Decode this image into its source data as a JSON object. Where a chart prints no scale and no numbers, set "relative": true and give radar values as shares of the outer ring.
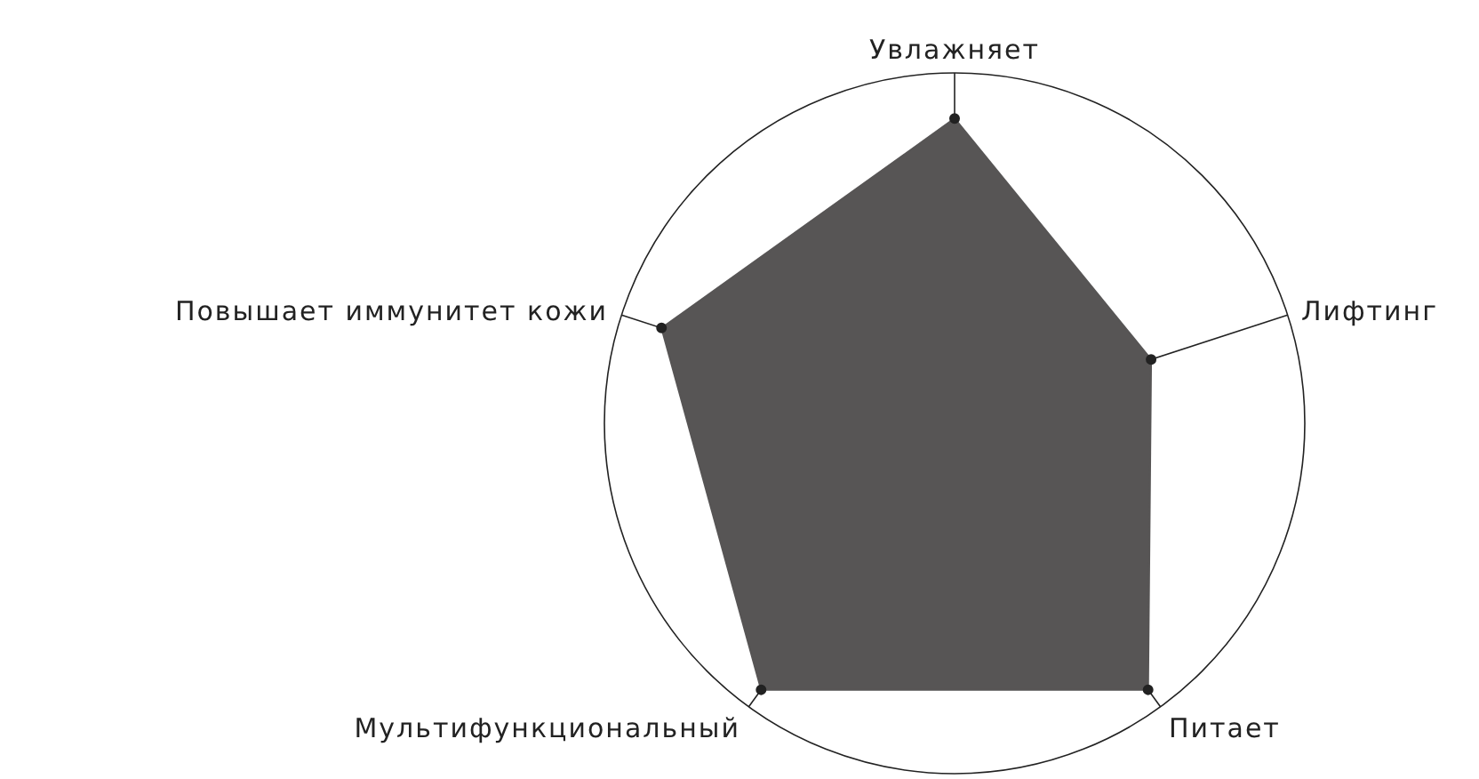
{
  "chart_data": {
    "type": "radar",
    "relative": true,
    "grid": true,
    "marker": "circle",
    "categories": [
      "Увлажняет",
      "Лифтинг",
      "Питает",
      "Мультифункциональный",
      "Повышает иммунитет кожи"
    ],
    "series": [
      {
        "color": "#575555",
        "values": [
          0.87,
          0.59,
          0.94,
          0.94,
          0.88
        ]
      }
    ]
  }
}
